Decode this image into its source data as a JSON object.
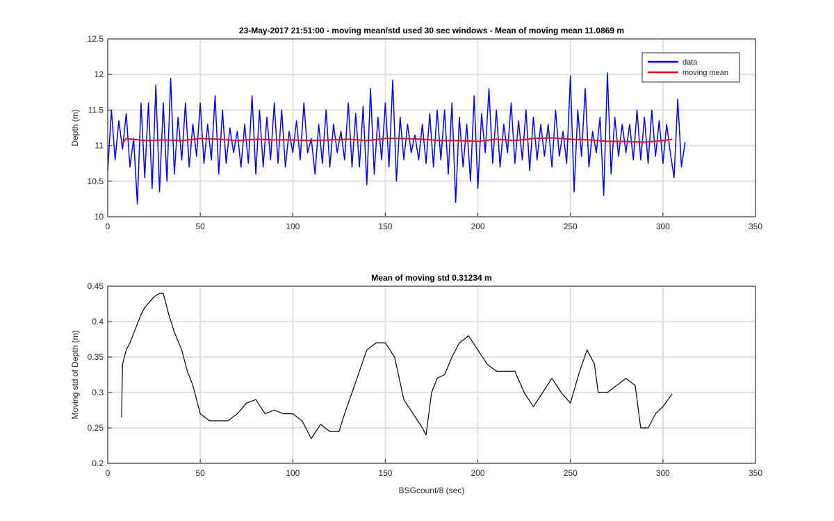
{
  "chart_data": [
    {
      "type": "line",
      "title": "23-May-2017 21:51:00 - moving mean/std used 30 sec windows - Mean of moving mean 11.0869 m",
      "y_label": "Depth (m)",
      "xlim": [
        0,
        350
      ],
      "xticks": [
        0,
        50,
        100,
        150,
        200,
        250,
        300,
        350
      ],
      "ylim": [
        10,
        12.5
      ],
      "yticks": [
        10,
        10.5,
        11,
        11.5,
        12,
        12.5
      ],
      "grid": true,
      "legend": "northeast",
      "series": [
        {
          "name": "data",
          "color": "#0000ff",
          "x": [
            0,
            2,
            4,
            6,
            8,
            10,
            12,
            14,
            16,
            18,
            20,
            22,
            24,
            26,
            28,
            30,
            32,
            34,
            36,
            38,
            40,
            42,
            44,
            46,
            48,
            50,
            52,
            54,
            56,
            58,
            60,
            62,
            64,
            66,
            68,
            70,
            72,
            74,
            76,
            78,
            80,
            82,
            84,
            86,
            88,
            90,
            92,
            94,
            96,
            98,
            100,
            102,
            104,
            106,
            108,
            110,
            112,
            114,
            116,
            118,
            120,
            122,
            124,
            126,
            128,
            130,
            132,
            134,
            136,
            138,
            140,
            142,
            144,
            146,
            148,
            150,
            152,
            154,
            156,
            158,
            160,
            162,
            164,
            166,
            168,
            170,
            172,
            174,
            176,
            178,
            180,
            182,
            184,
            186,
            188,
            190,
            192,
            194,
            196,
            198,
            200,
            202,
            204,
            206,
            208,
            210,
            212,
            214,
            216,
            218,
            220,
            222,
            224,
            226,
            228,
            230,
            232,
            234,
            236,
            238,
            240,
            242,
            244,
            246,
            248,
            250,
            252,
            254,
            256,
            258,
            260,
            262,
            264,
            266,
            268,
            270,
            272,
            274,
            276,
            278,
            280,
            282,
            284,
            286,
            288,
            290,
            292,
            294,
            296,
            298,
            300,
            302,
            304,
            306,
            308,
            310,
            312
          ],
          "values": [
            10.65,
            11.5,
            10.8,
            11.35,
            10.95,
            11.45,
            10.7,
            11.1,
            10.18,
            11.6,
            10.55,
            11.6,
            10.4,
            11.85,
            10.35,
            11.6,
            10.5,
            11.95,
            10.6,
            11.4,
            10.8,
            11.6,
            10.7,
            11.3,
            10.85,
            11.6,
            10.75,
            11.3,
            10.8,
            11.7,
            10.6,
            11.5,
            10.75,
            11.25,
            10.9,
            11.2,
            10.7,
            11.3,
            10.75,
            11.7,
            10.6,
            11.5,
            10.7,
            11.4,
            10.8,
            11.6,
            10.75,
            11.5,
            10.7,
            11.2,
            10.9,
            11.35,
            10.8,
            11.6,
            10.9,
            11.1,
            10.6,
            11.3,
            10.75,
            11.5,
            10.7,
            11.3,
            10.9,
            11.2,
            10.8,
            11.6,
            10.7,
            11.45,
            10.7,
            11.55,
            10.45,
            11.8,
            10.6,
            11.4,
            10.8,
            11.6,
            10.7,
            11.92,
            10.5,
            11.4,
            10.8,
            11.3,
            10.9,
            11.15,
            10.8,
            11.3,
            10.75,
            11.45,
            10.7,
            11.5,
            10.8,
            11.5,
            10.6,
            11.6,
            10.2,
            11.4,
            10.7,
            11.3,
            10.5,
            11.7,
            10.4,
            11.45,
            10.9,
            11.8,
            10.75,
            11.5,
            10.7,
            11.3,
            10.9,
            11.6,
            10.75,
            11.35,
            10.8,
            11.5,
            10.65,
            11.4,
            10.8,
            11.3,
            10.85,
            11.3,
            10.7,
            11.5,
            10.85,
            11.2,
            10.75,
            11.98,
            10.35,
            11.5,
            10.85,
            11.8,
            10.7,
            11.2,
            10.9,
            11.4,
            10.3,
            12.02,
            10.6,
            11.4,
            10.85,
            11.3,
            10.9,
            11.3,
            10.8,
            11.5,
            10.8,
            11.4,
            10.75,
            11.5,
            10.85,
            11.35,
            10.75,
            11.3,
            10.9,
            10.55,
            11.65,
            10.7,
            11.05
          ]
        },
        {
          "name": "moving mean",
          "color": "#ff0000",
          "x": [
            8,
            10,
            20,
            30,
            40,
            50,
            60,
            70,
            80,
            90,
            100,
            110,
            120,
            130,
            140,
            150,
            160,
            170,
            180,
            190,
            200,
            210,
            220,
            230,
            240,
            250,
            260,
            270,
            280,
            290,
            300,
            305
          ],
          "values": [
            11.03,
            11.1,
            11.07,
            11.08,
            11.07,
            11.1,
            11.09,
            11.07,
            11.09,
            11.08,
            11.08,
            11.07,
            11.08,
            11.09,
            11.07,
            11.1,
            11.1,
            11.09,
            11.07,
            11.07,
            11.06,
            11.09,
            11.07,
            11.1,
            11.11,
            11.09,
            11.08,
            11.06,
            11.06,
            11.05,
            11.07,
            11.09
          ]
        }
      ]
    },
    {
      "type": "line",
      "title": "Mean of moving std 0.31234 m",
      "x_label": "BSGcount/8 (sec)",
      "y_label": "Moving std of Depth (m)",
      "xlim": [
        0,
        350
      ],
      "xticks": [
        0,
        50,
        100,
        150,
        200,
        250,
        300,
        350
      ],
      "ylim": [
        0.2,
        0.45
      ],
      "yticks": [
        0.2,
        0.25,
        0.3,
        0.35,
        0.4,
        0.45
      ],
      "grid": true,
      "series": [
        {
          "color": "#000000",
          "x": [
            7.5,
            8,
            10,
            12,
            15,
            18,
            20,
            25,
            28,
            30,
            33,
            36,
            40,
            43,
            46,
            50,
            55,
            60,
            65,
            70,
            75,
            80,
            85,
            90,
            95,
            100,
            105,
            110,
            115,
            120,
            125,
            128,
            132,
            136,
            140,
            145,
            150,
            155,
            160,
            165,
            170,
            172,
            175,
            178,
            182,
            186,
            190,
            195,
            200,
            205,
            210,
            215,
            220,
            225,
            230,
            235,
            240,
            245,
            250,
            255,
            259,
            263,
            265,
            270,
            275,
            280,
            285,
            288,
            292,
            296,
            300,
            305
          ],
          "values": [
            0.265,
            0.34,
            0.36,
            0.37,
            0.39,
            0.41,
            0.42,
            0.435,
            0.44,
            0.44,
            0.41,
            0.385,
            0.36,
            0.33,
            0.31,
            0.27,
            0.26,
            0.26,
            0.26,
            0.27,
            0.285,
            0.29,
            0.27,
            0.275,
            0.27,
            0.27,
            0.26,
            0.235,
            0.255,
            0.245,
            0.245,
            0.27,
            0.3,
            0.33,
            0.36,
            0.37,
            0.37,
            0.35,
            0.29,
            0.27,
            0.25,
            0.24,
            0.3,
            0.32,
            0.325,
            0.35,
            0.37,
            0.38,
            0.36,
            0.34,
            0.33,
            0.33,
            0.33,
            0.3,
            0.28,
            0.3,
            0.32,
            0.3,
            0.285,
            0.33,
            0.36,
            0.34,
            0.3,
            0.3,
            0.31,
            0.32,
            0.31,
            0.25,
            0.25,
            0.27,
            0.28,
            0.298
          ]
        }
      ]
    }
  ]
}
